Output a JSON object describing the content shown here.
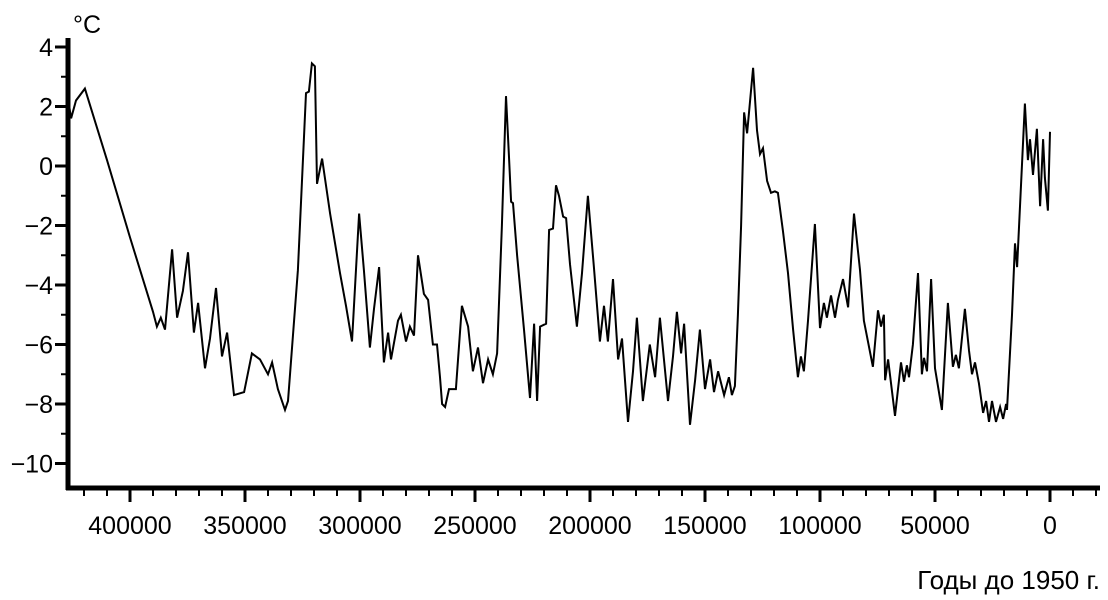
{
  "page": {
    "background": "#ffffff"
  },
  "chart_data": {
    "type": "line",
    "title": "",
    "y_unit": "°C",
    "x_title": "Годы до 1950 г.",
    "line_color": "#000000",
    "axis_color": "#000000",
    "text_color": "#000000",
    "background_color": "#ffffff",
    "grid": false,
    "legend": false,
    "xlabel": "Годы до 1950 г.",
    "ylabel": "°C",
    "x_axis_reversed": true,
    "xlim": [
      430000,
      -22000
    ],
    "ylim": [
      -10,
      4
    ],
    "x_major_ticks": [
      400000,
      350000,
      300000,
      250000,
      200000,
      150000,
      100000,
      50000,
      0
    ],
    "x_major_tick_labels": [
      "400000",
      "350000",
      "300000",
      "250000",
      "200000",
      "150000",
      "100000",
      "50000",
      "0"
    ],
    "x_minor_tick_step": 10000,
    "x_minor_tick_range": [
      420000,
      -20000
    ],
    "y_major_ticks": [
      4,
      2,
      0,
      -2,
      -4,
      -6,
      -8,
      -10
    ],
    "y_major_tick_labels": [
      "4",
      "2",
      "0",
      "−2",
      "−4",
      "−6",
      "−8",
      "−10"
    ],
    "y_minor_ticks": [
      3,
      1,
      -1,
      -3,
      -5,
      -7,
      -9
    ],
    "series": [
      {
        "name": "temperature-anomaly",
        "points": [
          [
            427000,
            2.3
          ],
          [
            425600,
            1.6
          ],
          [
            423500,
            2.2
          ],
          [
            419600,
            2.6
          ],
          [
            410000,
            0.2
          ],
          [
            400000,
            -2.4
          ],
          [
            390000,
            -4.9
          ],
          [
            388300,
            -5.4
          ],
          [
            386600,
            -5.1
          ],
          [
            384800,
            -5.5
          ],
          [
            381700,
            -2.8
          ],
          [
            379500,
            -5.1
          ],
          [
            377000,
            -4.2
          ],
          [
            374800,
            -2.9
          ],
          [
            372200,
            -5.6
          ],
          [
            370400,
            -4.6
          ],
          [
            367400,
            -6.8
          ],
          [
            365200,
            -5.8
          ],
          [
            362600,
            -4.1
          ],
          [
            360000,
            -6.4
          ],
          [
            357800,
            -5.6
          ],
          [
            354800,
            -7.7
          ],
          [
            350400,
            -7.6
          ],
          [
            347000,
            -6.3
          ],
          [
            343500,
            -6.5
          ],
          [
            340000,
            -7.0
          ],
          [
            338200,
            -6.6
          ],
          [
            335700,
            -7.5
          ],
          [
            332600,
            -8.2
          ],
          [
            331300,
            -7.9
          ],
          [
            327000,
            -3.5
          ],
          [
            323500,
            2.45
          ],
          [
            322200,
            2.5
          ],
          [
            320900,
            3.45
          ],
          [
            319600,
            3.35
          ],
          [
            318700,
            -0.6
          ],
          [
            316500,
            0.25
          ],
          [
            313000,
            -1.6
          ],
          [
            308700,
            -3.6
          ],
          [
            306100,
            -4.7
          ],
          [
            303500,
            -5.9
          ],
          [
            300400,
            -1.6
          ],
          [
            298300,
            -3.5
          ],
          [
            295700,
            -6.1
          ],
          [
            293900,
            -4.8
          ],
          [
            291700,
            -3.4
          ],
          [
            289600,
            -6.6
          ],
          [
            287800,
            -5.6
          ],
          [
            286500,
            -6.5
          ],
          [
            283500,
            -5.2
          ],
          [
            282200,
            -5.0
          ],
          [
            280000,
            -5.9
          ],
          [
            278300,
            -5.4
          ],
          [
            276500,
            -5.7
          ],
          [
            274800,
            -3.0
          ],
          [
            272200,
            -4.3
          ],
          [
            270400,
            -4.5
          ],
          [
            268300,
            -6.0
          ],
          [
            266500,
            -6.0
          ],
          [
            265200,
            -7.1
          ],
          [
            264300,
            -8.0
          ],
          [
            263000,
            -8.1
          ],
          [
            261300,
            -7.5
          ],
          [
            258300,
            -7.5
          ],
          [
            255700,
            -4.7
          ],
          [
            253000,
            -5.4
          ],
          [
            250900,
            -6.9
          ],
          [
            248700,
            -6.1
          ],
          [
            246500,
            -7.3
          ],
          [
            244300,
            -6.5
          ],
          [
            242200,
            -7.0
          ],
          [
            240400,
            -6.3
          ],
          [
            238300,
            -2.0
          ],
          [
            236500,
            2.35
          ],
          [
            235200,
            0.3
          ],
          [
            234300,
            -1.2
          ],
          [
            233500,
            -1.25
          ],
          [
            231700,
            -3.0
          ],
          [
            228700,
            -5.5
          ],
          [
            226100,
            -7.8
          ],
          [
            224300,
            -5.3
          ],
          [
            223000,
            -7.9
          ],
          [
            221700,
            -5.4
          ],
          [
            219100,
            -5.3
          ],
          [
            217800,
            -2.15
          ],
          [
            216100,
            -2.1
          ],
          [
            214800,
            -0.65
          ],
          [
            213500,
            -1.0
          ],
          [
            211700,
            -1.7
          ],
          [
            210400,
            -1.75
          ],
          [
            208700,
            -3.3
          ],
          [
            205700,
            -5.4
          ],
          [
            203500,
            -3.6
          ],
          [
            200900,
            -1.0
          ],
          [
            198300,
            -3.4
          ],
          [
            195700,
            -5.9
          ],
          [
            193900,
            -4.7
          ],
          [
            192200,
            -5.9
          ],
          [
            190000,
            -3.8
          ],
          [
            187800,
            -6.5
          ],
          [
            186100,
            -5.8
          ],
          [
            183500,
            -8.6
          ],
          [
            181300,
            -6.9
          ],
          [
            179600,
            -5.1
          ],
          [
            177000,
            -7.9
          ],
          [
            174000,
            -6.0
          ],
          [
            171700,
            -7.1
          ],
          [
            169600,
            -5.1
          ],
          [
            166100,
            -7.9
          ],
          [
            163900,
            -6.4
          ],
          [
            162200,
            -4.9
          ],
          [
            160400,
            -6.3
          ],
          [
            159100,
            -5.3
          ],
          [
            156500,
            -8.7
          ],
          [
            154300,
            -7.2
          ],
          [
            152200,
            -5.5
          ],
          [
            150000,
            -7.5
          ],
          [
            147800,
            -6.5
          ],
          [
            146100,
            -7.6
          ],
          [
            144300,
            -6.9
          ],
          [
            141700,
            -7.7
          ],
          [
            139600,
            -7.1
          ],
          [
            138300,
            -7.7
          ],
          [
            137000,
            -7.4
          ],
          [
            135700,
            -5.0
          ],
          [
            134300,
            -2.0
          ],
          [
            133000,
            1.8
          ],
          [
            131700,
            1.1
          ],
          [
            129100,
            3.3
          ],
          [
            127400,
            1.2
          ],
          [
            126100,
            0.4
          ],
          [
            124800,
            0.6
          ],
          [
            123000,
            -0.5
          ],
          [
            121300,
            -0.9
          ],
          [
            119600,
            -0.85
          ],
          [
            118300,
            -0.9
          ],
          [
            116100,
            -2.2
          ],
          [
            113900,
            -3.6
          ],
          [
            111700,
            -5.5
          ],
          [
            109600,
            -7.1
          ],
          [
            108300,
            -6.4
          ],
          [
            107000,
            -6.9
          ],
          [
            105200,
            -5.2
          ],
          [
            102200,
            -1.95
          ],
          [
            100000,
            -5.45
          ],
          [
            98300,
            -4.6
          ],
          [
            97000,
            -5.1
          ],
          [
            95200,
            -4.35
          ],
          [
            93500,
            -5.1
          ],
          [
            92200,
            -4.5
          ],
          [
            90000,
            -3.8
          ],
          [
            87800,
            -4.75
          ],
          [
            85200,
            -1.6
          ],
          [
            82600,
            -3.5
          ],
          [
            80900,
            -5.2
          ],
          [
            77000,
            -6.75
          ],
          [
            74800,
            -4.85
          ],
          [
            73500,
            -5.4
          ],
          [
            72200,
            -5.0
          ],
          [
            71700,
            -7.2
          ],
          [
            70400,
            -6.5
          ],
          [
            67400,
            -8.4
          ],
          [
            64800,
            -6.6
          ],
          [
            63500,
            -7.25
          ],
          [
            62200,
            -6.7
          ],
          [
            61300,
            -7.1
          ],
          [
            59600,
            -6.0
          ],
          [
            57400,
            -3.6
          ],
          [
            55700,
            -7.0
          ],
          [
            54800,
            -6.45
          ],
          [
            53500,
            -6.9
          ],
          [
            51700,
            -3.8
          ],
          [
            50000,
            -6.8
          ],
          [
            47000,
            -8.2
          ],
          [
            44400,
            -4.6
          ],
          [
            42200,
            -6.75
          ],
          [
            40900,
            -6.35
          ],
          [
            39600,
            -6.8
          ],
          [
            37000,
            -4.8
          ],
          [
            35200,
            -6.2
          ],
          [
            33900,
            -7.0
          ],
          [
            32600,
            -6.6
          ],
          [
            30900,
            -7.3
          ],
          [
            29100,
            -8.3
          ],
          [
            27800,
            -7.9
          ],
          [
            26500,
            -8.6
          ],
          [
            25200,
            -7.9
          ],
          [
            23500,
            -8.6
          ],
          [
            21700,
            -8.1
          ],
          [
            20400,
            -8.5
          ],
          [
            19100,
            -8.0
          ],
          [
            18700,
            -8.2
          ],
          [
            16500,
            -5.0
          ],
          [
            15200,
            -2.6
          ],
          [
            14300,
            -3.4
          ],
          [
            10900,
            2.1
          ],
          [
            9600,
            0.2
          ],
          [
            8700,
            0.9
          ],
          [
            7400,
            -0.3
          ],
          [
            5700,
            1.25
          ],
          [
            4300,
            -1.35
          ],
          [
            3000,
            0.9
          ],
          [
            2200,
            -0.4
          ],
          [
            900,
            -1.5
          ],
          [
            0,
            1.15
          ]
        ]
      }
    ]
  }
}
